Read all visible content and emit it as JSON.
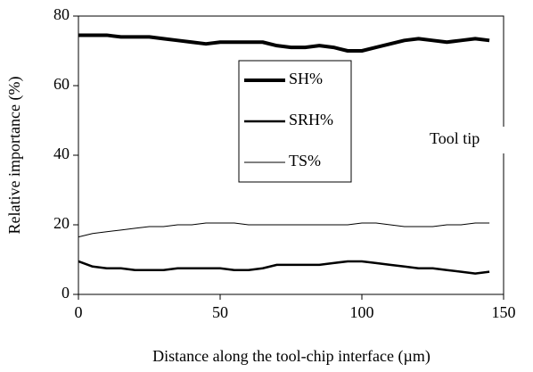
{
  "chart_data": {
    "type": "line",
    "xlabel": "Distance along the tool-chip interface (µm)",
    "ylabel": "Relative importance (%)",
    "annotation": "Tool tip",
    "legend": "center",
    "x": [
      0,
      5,
      10,
      15,
      20,
      25,
      30,
      35,
      40,
      45,
      50,
      55,
      60,
      65,
      70,
      75,
      80,
      85,
      90,
      95,
      100,
      105,
      110,
      115,
      120,
      125,
      130,
      135,
      140,
      145
    ],
    "series": [
      {
        "name": "SH%",
        "color": "#000000",
        "width": 4,
        "values": [
          74.5,
          74.5,
          74.5,
          74,
          74,
          74,
          73.5,
          73,
          72.5,
          72,
          72.5,
          72.5,
          72.5,
          72.5,
          71.5,
          71,
          71,
          71.5,
          71,
          70,
          70,
          71,
          72,
          73,
          73.5,
          73,
          72.5,
          73,
          73.5,
          73
        ]
      },
      {
        "name": "SRH%",
        "color": "#000000",
        "width": 2.5,
        "values": [
          9.5,
          8,
          7.5,
          7.5,
          7,
          7,
          7,
          7.5,
          7.5,
          7.5,
          7.5,
          7,
          7,
          7.5,
          8.5,
          8.5,
          8.5,
          8.5,
          9,
          9.5,
          9.5,
          9,
          8.5,
          8,
          7.5,
          7.5,
          7,
          6.5,
          6,
          6.5
        ]
      },
      {
        "name": "TS%",
        "color": "#000000",
        "width": 1,
        "values": [
          16.5,
          17.5,
          18,
          18.5,
          19,
          19.5,
          19.5,
          20,
          20,
          20.5,
          20.5,
          20.5,
          20,
          20,
          20,
          20,
          20,
          20,
          20,
          20,
          20.5,
          20.5,
          20,
          19.5,
          19.5,
          19.5,
          20,
          20,
          20.5,
          20.5
        ]
      }
    ],
    "xlim": [
      0,
      150
    ],
    "xticks": [
      0,
      50,
      100,
      150
    ],
    "ylim": [
      0,
      80
    ],
    "yticks": [
      0,
      20,
      40,
      60,
      80
    ]
  }
}
